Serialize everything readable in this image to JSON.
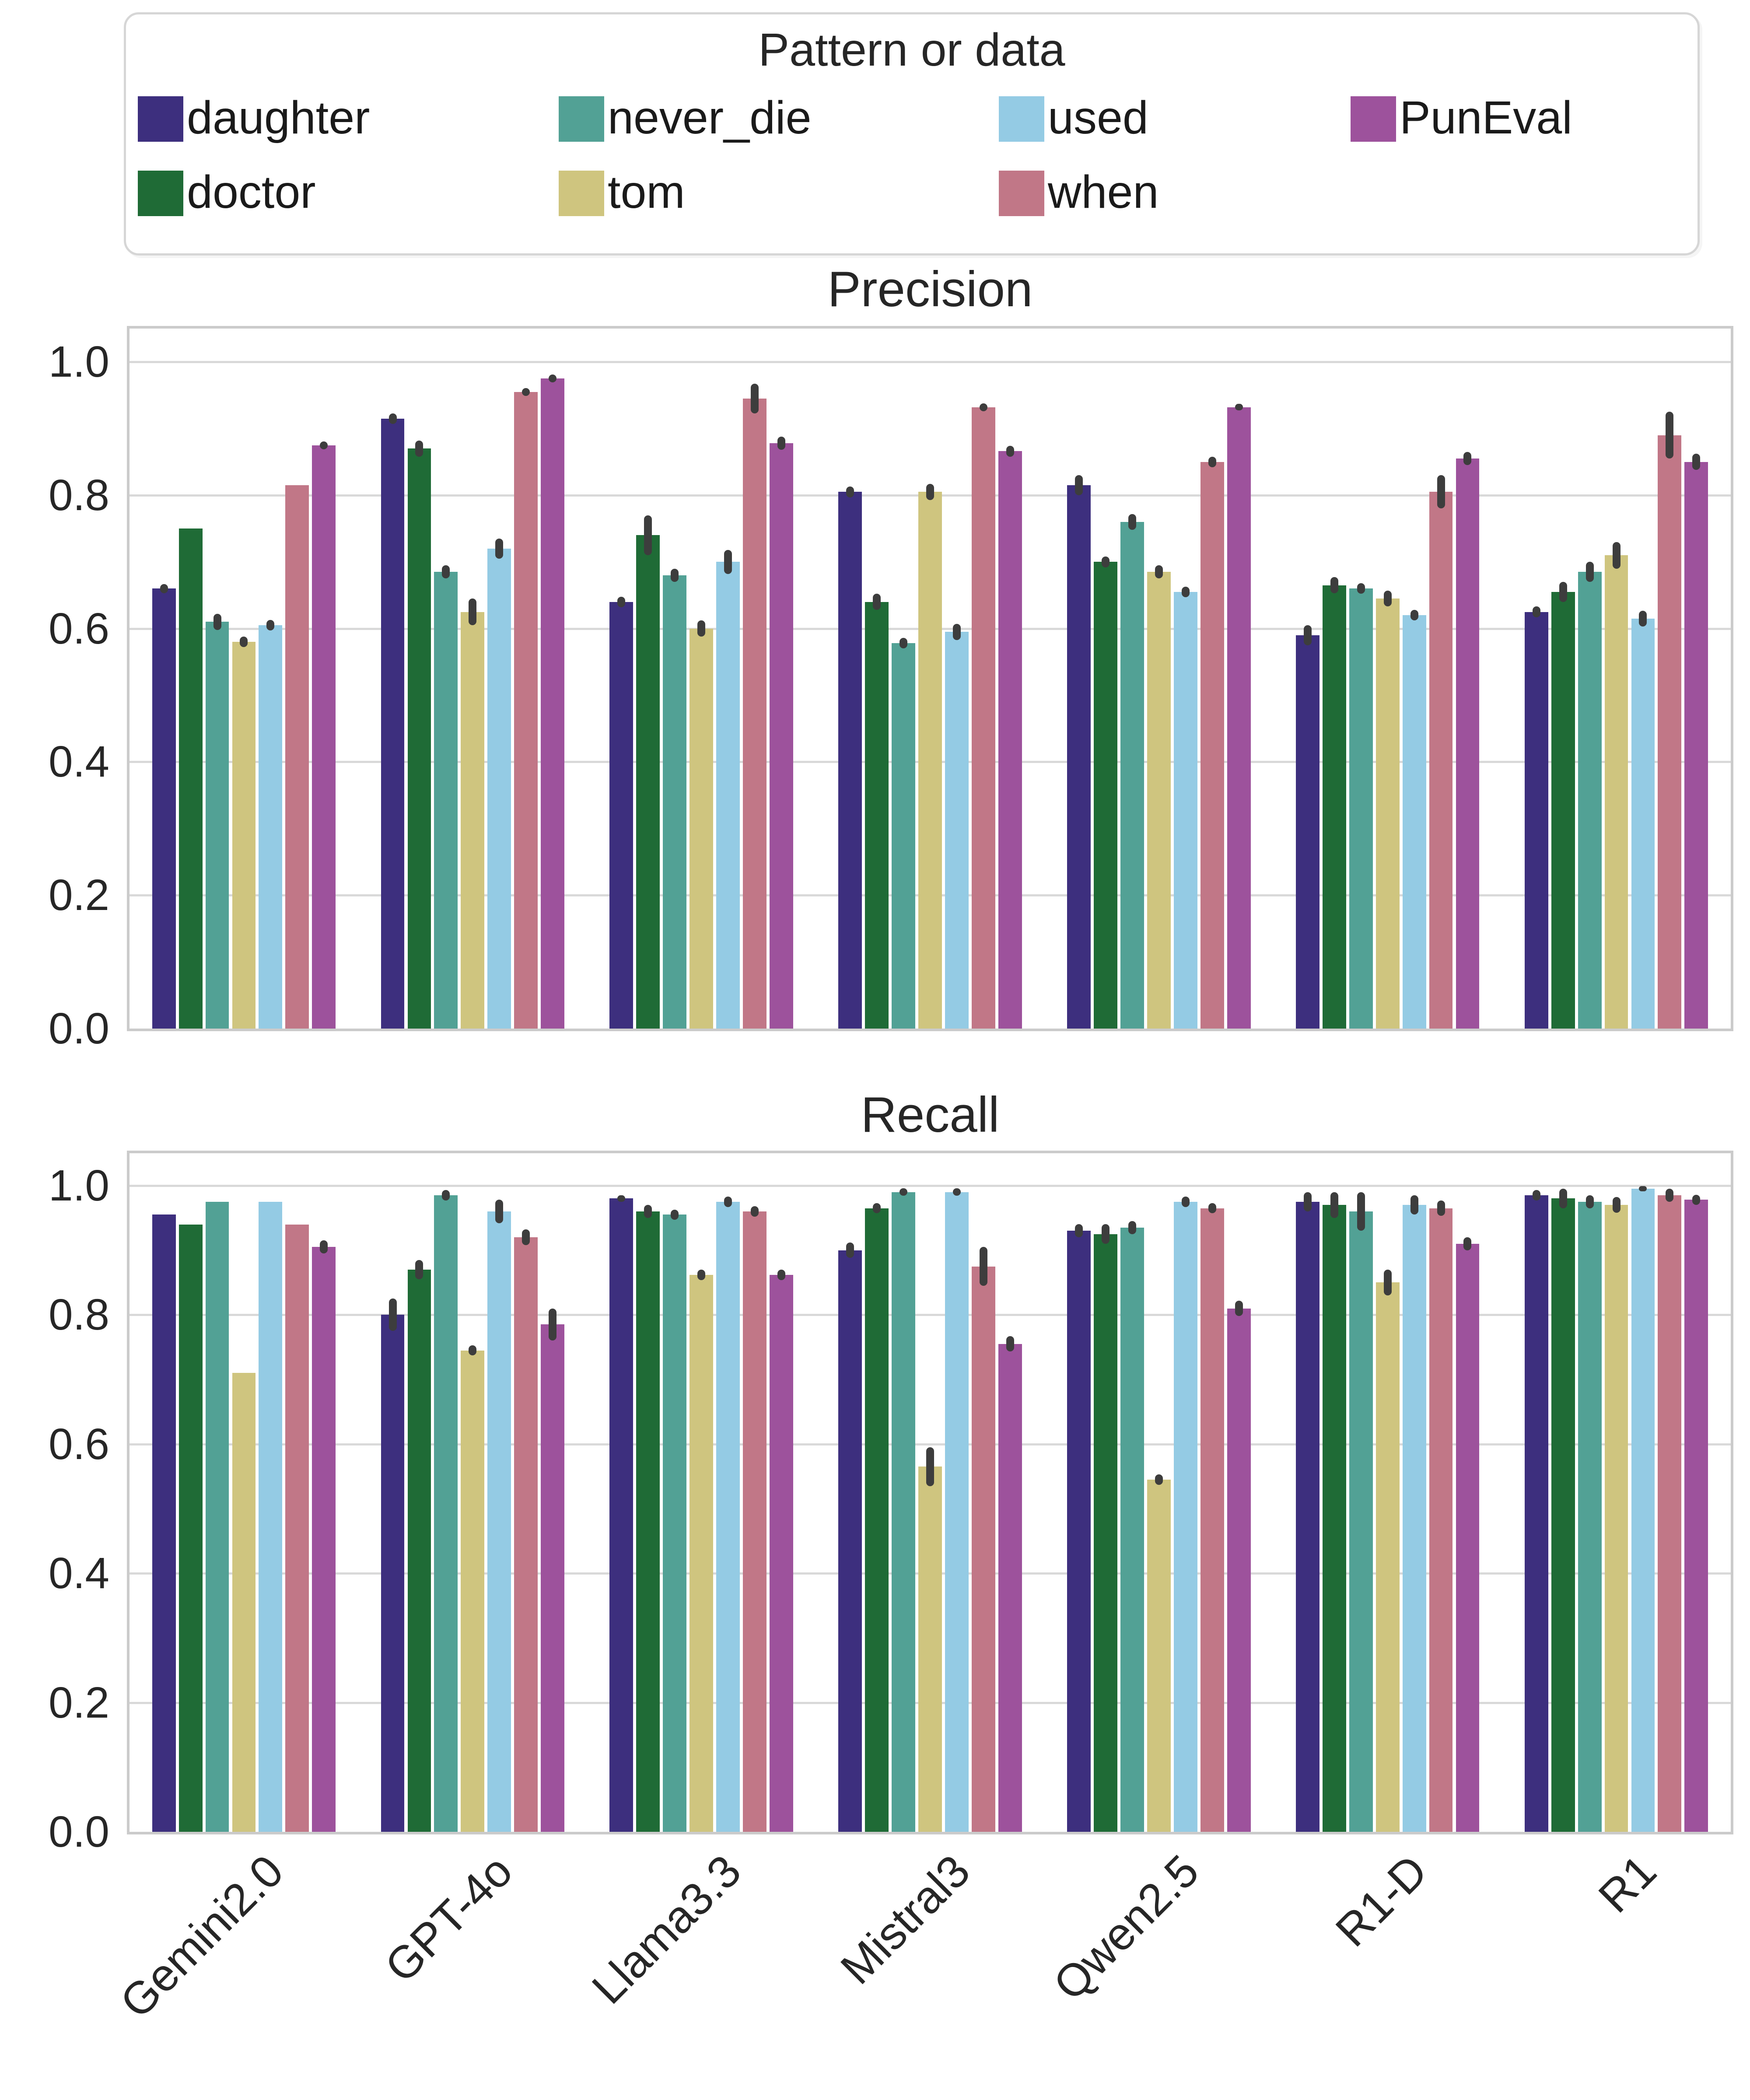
{
  "legend": {
    "title": "Pattern or data",
    "entries": [
      {
        "label": "daughter",
        "color": "#3d2f7e",
        "col": 0,
        "row": 0
      },
      {
        "label": "doctor",
        "color": "#1f6b36",
        "col": 0,
        "row": 1
      },
      {
        "label": "never_die",
        "color": "#52a195",
        "col": 1,
        "row": 0
      },
      {
        "label": "tom",
        "color": "#cfc57f",
        "col": 1,
        "row": 1
      },
      {
        "label": "used",
        "color": "#94cbe4",
        "col": 2,
        "row": 0
      },
      {
        "label": "when",
        "color": "#c17787",
        "col": 2,
        "row": 1
      },
      {
        "label": "PunEval",
        "color": "#9d529c",
        "col": 3,
        "row": 0
      }
    ]
  },
  "colors": {
    "gridline": "#d9d9d9",
    "spine": "#cbcbcb",
    "error_bar": "#3d3d3d"
  },
  "chart_data": [
    {
      "type": "bar",
      "title": "Precision",
      "categories": [
        "Gemini2.0",
        "GPT-4o",
        "Llama3.3",
        "Mistral3",
        "Qwen2.5",
        "R1-D",
        "R1"
      ],
      "ylim": [
        0,
        1.05
      ],
      "yticks": [
        "0.0",
        "0.2",
        "0.4",
        "0.6",
        "0.8",
        "1.0"
      ],
      "grid": true,
      "legend_position": "top",
      "series": [
        {
          "name": "daughter",
          "color": "#3d2f7e",
          "values": [
            0.66,
            0.915,
            0.64,
            0.805,
            0.815,
            0.59,
            0.625
          ],
          "errors": [
            0.007,
            0.008,
            0.008,
            0.008,
            0.015,
            0.015,
            0.008
          ]
        },
        {
          "name": "doctor",
          "color": "#1f6b36",
          "values": [
            0.75,
            0.87,
            0.74,
            0.64,
            0.7,
            0.665,
            0.655
          ],
          "errors": [
            0,
            0.012,
            0.03,
            0.012,
            0.008,
            0.012,
            0.015
          ]
        },
        {
          "name": "never_die",
          "color": "#52a195",
          "values": [
            0.61,
            0.685,
            0.68,
            0.578,
            0.76,
            0.66,
            0.685
          ],
          "errors": [
            0.012,
            0.01,
            0.01,
            0.008,
            0.012,
            0.008,
            0.015
          ]
        },
        {
          "name": "tom",
          "color": "#cfc57f",
          "values": [
            0.58,
            0.625,
            0.6,
            0.805,
            0.685,
            0.645,
            0.71
          ],
          "errors": [
            0.008,
            0.02,
            0.012,
            0.012,
            0.01,
            0.012,
            0.02
          ]
        },
        {
          "name": "used",
          "color": "#94cbe4",
          "values": [
            0.605,
            0.72,
            0.7,
            0.595,
            0.655,
            0.62,
            0.615
          ],
          "errors": [
            0.008,
            0.015,
            0.018,
            0.012,
            0.008,
            0.008,
            0.012
          ]
        },
        {
          "name": "when",
          "color": "#c17787",
          "values": [
            0.815,
            0.955,
            0.945,
            0.932,
            0.85,
            0.805,
            0.89
          ],
          "errors": [
            0,
            0.006,
            0.022,
            0.006,
            0.008,
            0.025,
            0.035
          ]
        },
        {
          "name": "PunEval",
          "color": "#9d529c",
          "values": [
            0.875,
            0.975,
            0.878,
            0.866,
            0.932,
            0.855,
            0.85
          ],
          "errors": [
            0.006,
            0.006,
            0.01,
            0.008,
            0.005,
            0.01,
            0.012
          ]
        }
      ]
    },
    {
      "type": "bar",
      "title": "Recall",
      "categories": [
        "Gemini2.0",
        "GPT-4o",
        "Llama3.3",
        "Mistral3",
        "Qwen2.5",
        "R1-D",
        "R1"
      ],
      "ylim": [
        0,
        1.05
      ],
      "yticks": [
        "0.0",
        "0.2",
        "0.4",
        "0.6",
        "0.8",
        "1.0"
      ],
      "grid": true,
      "series": [
        {
          "name": "daughter",
          "color": "#3d2f7e",
          "values": [
            0.955,
            0.8,
            0.98,
            0.9,
            0.93,
            0.975,
            0.985
          ],
          "errors": [
            0,
            0.025,
            0.005,
            0.012,
            0.01,
            0.015,
            0.008
          ]
        },
        {
          "name": "doctor",
          "color": "#1f6b36",
          "values": [
            0.94,
            0.87,
            0.96,
            0.965,
            0.925,
            0.97,
            0.98
          ],
          "errors": [
            0,
            0.015,
            0.01,
            0.008,
            0.015,
            0.02,
            0.015
          ]
        },
        {
          "name": "never_die",
          "color": "#52a195",
          "values": [
            0.975,
            0.985,
            0.955,
            0.99,
            0.935,
            0.96,
            0.975
          ],
          "errors": [
            0,
            0.008,
            0.008,
            0.006,
            0.01,
            0.03,
            0.01
          ]
        },
        {
          "name": "tom",
          "color": "#cfc57f",
          "values": [
            0.71,
            0.745,
            0.862,
            0.565,
            0.545,
            0.85,
            0.97
          ],
          "errors": [
            0,
            0.008,
            0.008,
            0.03,
            0.008,
            0.02,
            0.012
          ]
        },
        {
          "name": "used",
          "color": "#94cbe4",
          "values": [
            0.975,
            0.96,
            0.975,
            0.99,
            0.975,
            0.97,
            0.995
          ],
          "errors": [
            0,
            0.018,
            0.008,
            0.006,
            0.008,
            0.015,
            0.004
          ]
        },
        {
          "name": "when",
          "color": "#c17787",
          "values": [
            0.94,
            0.92,
            0.96,
            0.875,
            0.965,
            0.965,
            0.985
          ],
          "errors": [
            0,
            0.012,
            0.008,
            0.03,
            0.008,
            0.012,
            0.01
          ]
        },
        {
          "name": "PunEval",
          "color": "#9d529c",
          "values": [
            0.905,
            0.785,
            0.862,
            0.755,
            0.81,
            0.91,
            0.978
          ],
          "errors": [
            0.01,
            0.025,
            0.008,
            0.012,
            0.012,
            0.01,
            0.008
          ]
        }
      ]
    }
  ]
}
